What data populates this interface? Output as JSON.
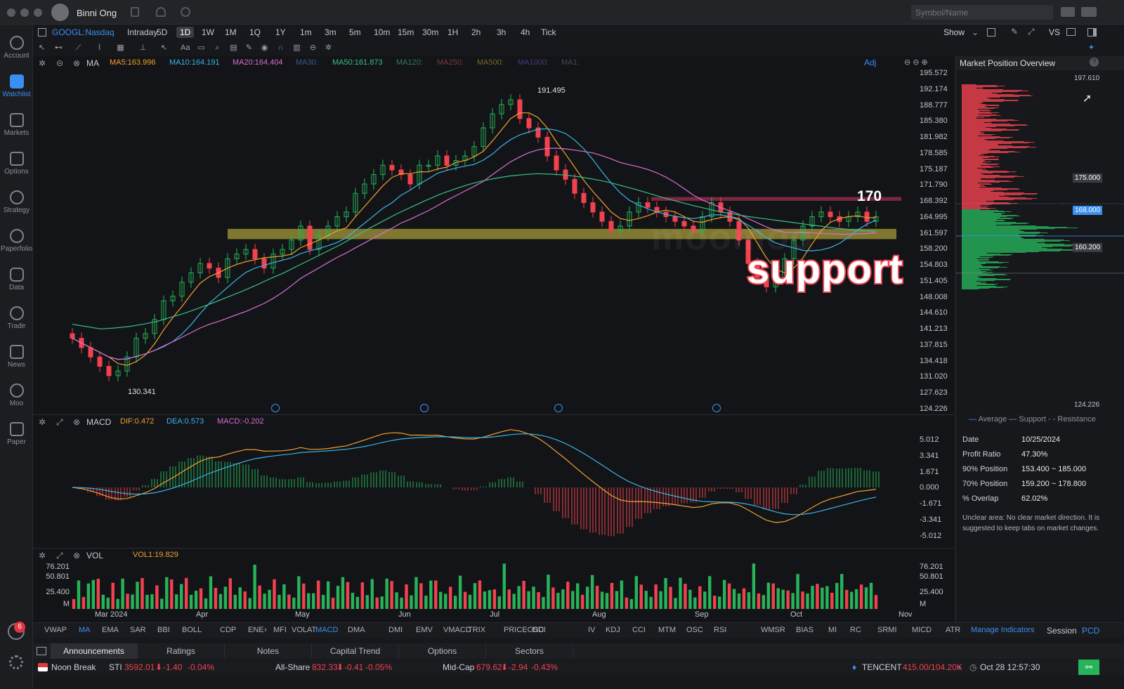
{
  "window": {
    "user": "Binni Ong",
    "search_placeholder": "Symbol/Name"
  },
  "sidebar": {
    "items": [
      {
        "label": "Account",
        "icon": "account-icon"
      },
      {
        "label": "Watchlist",
        "icon": "watchlist-icon",
        "active": true
      },
      {
        "label": "Markets",
        "icon": "markets-icon"
      },
      {
        "label": "Options",
        "icon": "options-icon"
      },
      {
        "label": "Strategy",
        "icon": "strategy-icon"
      },
      {
        "label": "Paperfolio",
        "icon": "paperfolio-icon"
      },
      {
        "label": "Data",
        "icon": "data-icon"
      },
      {
        "label": "Trade",
        "icon": "trade-icon"
      },
      {
        "label": "News",
        "icon": "news-icon"
      },
      {
        "label": "Moo",
        "icon": "moo-icon"
      },
      {
        "label": "Paper",
        "icon": "paper-icon"
      }
    ],
    "notification_count": "6"
  },
  "toolbar": {
    "symbol": "GOOGL:Nasdaq",
    "timeframes": [
      "Intraday",
      "5D",
      "1D",
      "1W",
      "1M",
      "1Q",
      "1Y",
      "1m",
      "3m",
      "5m",
      "10m",
      "15m",
      "30m",
      "1H",
      "2h",
      "3h",
      "4h",
      "Tick"
    ],
    "active_timeframe": "1D",
    "show_label": "Show",
    "vs_label": "VS"
  },
  "main_chart": {
    "indicator": "MA",
    "ma_labels": [
      {
        "text": "MA5:163.996",
        "color": "#f0a030"
      },
      {
        "text": "MA10:164.191",
        "color": "#3ab4e8"
      },
      {
        "text": "MA20:164.404",
        "color": "#d86fd0"
      },
      {
        "text": "MA30:",
        "color": "#3a5a88"
      },
      {
        "text": "MA50:161.873",
        "color": "#36c08a"
      },
      {
        "text": "MA120:",
        "color": "#2f7a66"
      },
      {
        "text": "MA250:",
        "color": "#7a3a3a"
      },
      {
        "text": "MA500:",
        "color": "#7a6a2a"
      },
      {
        "text": "MA1000:",
        "color": "#4a3a7a"
      },
      {
        "text": "MA1:",
        "color": "#444a55"
      }
    ],
    "adj_label": "Adj",
    "y_ticks": [
      "195.572",
      "192.174",
      "188.777",
      "185.380",
      "181.982",
      "178.585",
      "175.187",
      "171.790",
      "168.392",
      "164.995",
      "161.597",
      "158.200",
      "154.803",
      "151.405",
      "148.008",
      "144.610",
      "141.213",
      "137.815",
      "134.418",
      "131.020",
      "127.623",
      "124.226"
    ],
    "high_label": "191.495",
    "low_label": "130.341",
    "annotation_170": "170",
    "annotation_support": "support",
    "watermark": "moomoo"
  },
  "chart_data": {
    "type": "candlestick",
    "symbol": "GOOGL",
    "x_ticks": [
      "Mar 2024",
      "Apr",
      "May",
      "Jun",
      "Jul",
      "Aug",
      "Sep",
      "Oct",
      "Nov"
    ],
    "ylim": [
      124.226,
      195.572
    ],
    "high": 191.495,
    "low": 130.341,
    "close_series": [
      139,
      137,
      135,
      133,
      131,
      132,
      135,
      139,
      140,
      143,
      147,
      148,
      151,
      153,
      155,
      154,
      152,
      156,
      157,
      158,
      156,
      154,
      157,
      158,
      160,
      163,
      158,
      161,
      163,
      165,
      166,
      170,
      172,
      174,
      176,
      175,
      174,
      172,
      176,
      176,
      178,
      176,
      177,
      178,
      180,
      184,
      187,
      189,
      190,
      186,
      184,
      182,
      178,
      175,
      173,
      170,
      168,
      166,
      164,
      162,
      163,
      166,
      168,
      167,
      166,
      165,
      164,
      163,
      162,
      165,
      168,
      166,
      164,
      160,
      155,
      152,
      150,
      152,
      156,
      160,
      163,
      165,
      166,
      165,
      164,
      165,
      166,
      164,
      165
    ],
    "ma50_series": [
      142,
      141.5,
      141,
      141.2,
      141.5,
      142,
      142.6,
      143.5,
      144.4,
      145.5,
      146.6,
      147.8,
      149,
      150.3,
      151.7,
      153,
      154.5,
      156,
      157.5,
      159,
      160.7,
      162.4,
      164,
      165.6,
      167,
      168.4,
      169.7,
      170.8,
      171.8,
      172.6,
      173.2,
      173.7,
      174,
      174.2,
      174.1,
      173.9,
      173.5,
      173,
      172.4,
      171.6,
      170.8,
      169.9,
      169,
      168.2,
      167.4,
      166.7,
      166,
      165.5,
      165,
      164.6,
      164.2,
      163.8,
      163.4,
      163,
      162.6,
      162.3,
      162,
      161.9
    ],
    "support_zone": [
      160.2,
      162.4
    ],
    "resistance_zone": [
      168.4,
      169.2
    ],
    "macd": {
      "dif": 0.472,
      "dea": 0.573,
      "macd": -0.202,
      "y_ticks": [
        "5.012",
        "3.341",
        "1.671",
        "0.000",
        "-1.671",
        "-3.341",
        "-5.012"
      ]
    },
    "volume": {
      "vol1": 19.829,
      "y_ticks": [
        "76.201",
        "50.801",
        "25.400",
        "M"
      ]
    }
  },
  "macd_panel": {
    "name": "MACD",
    "dif": "DIF:0.472",
    "dea": "DEA:0.573",
    "macd": "MACD:-0.202"
  },
  "vol_panel": {
    "name": "VOL",
    "vol1": "VOL1:19.829"
  },
  "right_panel": {
    "title": "Market Position Overview",
    "top_price": "197.610",
    "bottom_price": "124.226",
    "price_tags": [
      {
        "text": "175.000",
        "y": 250
      },
      {
        "text": "168.000",
        "y": 296
      },
      {
        "text": "160.200",
        "y": 349
      }
    ],
    "legend": [
      "Average",
      "Support",
      "Resistance"
    ],
    "stats": [
      {
        "label": "Date",
        "value": "10/25/2024"
      },
      {
        "label": "Profit Ratio",
        "value": "47.30%"
      },
      {
        "label": "90% Position",
        "value": "153.400 ~ 185.000"
      },
      {
        "label": "70% Position",
        "value": "159.200 ~ 178.800"
      },
      {
        "label": "% Overlap",
        "value": "62.02%"
      }
    ],
    "note": "Unclear area: No clear market direction.  It is suggested to keep tabs on market changes."
  },
  "indicators": [
    "VWAP",
    "MA",
    "EMA",
    "SAR",
    "BBI",
    "BOLL",
    "CDP",
    "ENE",
    "MFI",
    "VOLAT",
    "MACD",
    "DMA",
    "DMI",
    "EMV",
    "VMACD",
    "TRIX",
    "PRICEOSC",
    "DDI",
    "IV",
    "KDJ",
    "CCI",
    "MTM",
    "OSC",
    "RSI",
    "WMSR",
    "BIAS",
    "MI",
    "RC",
    "SRMI",
    "MICD",
    "ATR"
  ],
  "manage_indicators": "Manage Indicators",
  "session_label": "Session",
  "pcd_label": "PCD",
  "bottom_tabs": [
    "Announcements",
    "Ratings",
    "Notes",
    "Capital Trend",
    "Options",
    "Sectors"
  ],
  "status": {
    "market_state": "Noon Break",
    "sti_label": "STI",
    "sti_value": "3592.01",
    "sti_change": "-1.40",
    "sti_pct": "-0.04%",
    "allshare_label": "All-Share",
    "allshare_value": "832.33",
    "allshare_change": "-0.41",
    "allshare_pct": "-0.05%",
    "midcap_label": "Mid-Cap",
    "midcap_value": "679.62",
    "midcap_change": "-2.94",
    "midcap_pct": "-0.43%",
    "ticker": "TENCENT",
    "ticker_value": "415.00/104.20K",
    "datetime": "Oct 28 12:57:30"
  },
  "colors": {
    "up": "#26b35a",
    "down": "#f2424f",
    "accent": "#3a8ff0"
  }
}
